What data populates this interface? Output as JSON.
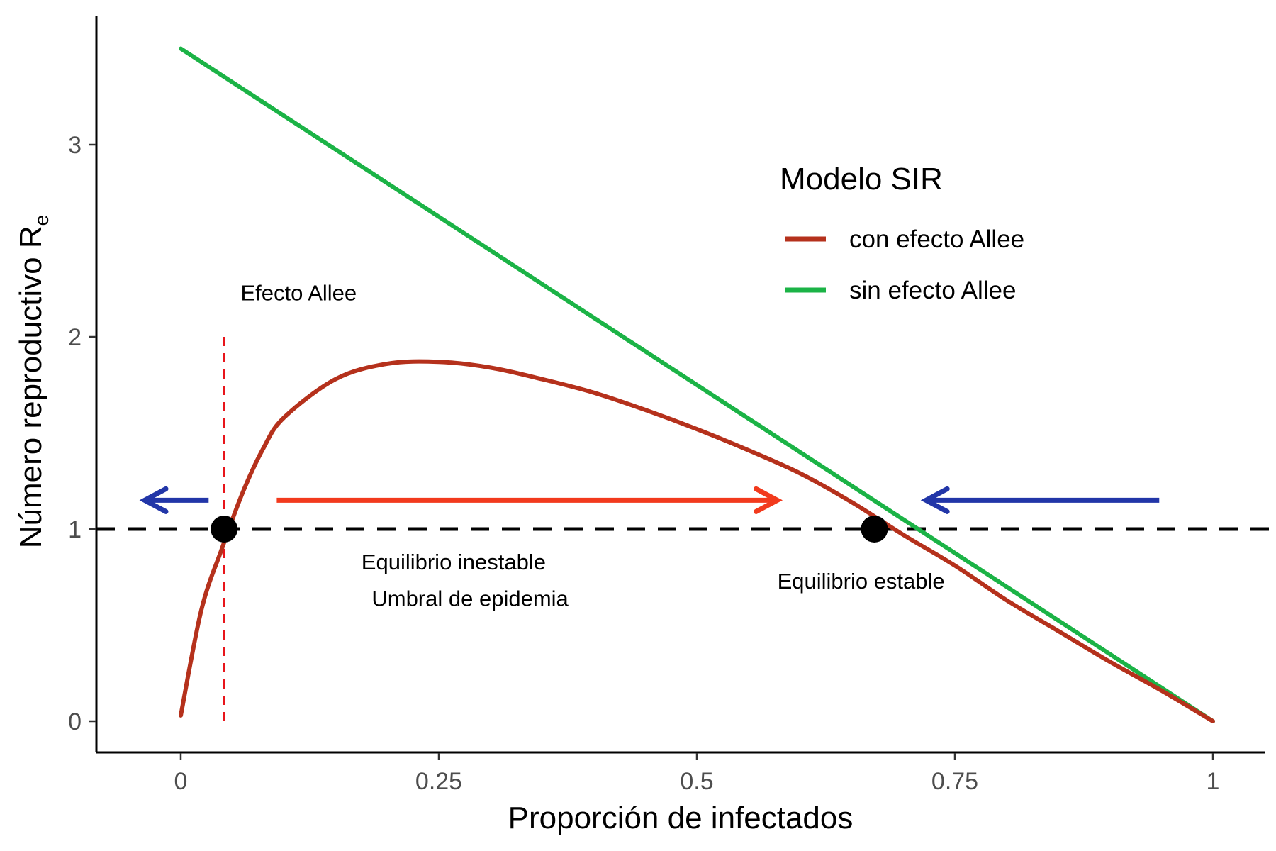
{
  "chart_data": {
    "type": "line",
    "xlabel": "Proporción de infectados",
    "ylabel_main": "Número reproductivo  R",
    "ylabel_sub": "e",
    "xlim": [
      -0.08,
      1.05
    ],
    "ylim": [
      -0.17,
      3.7
    ],
    "x_ticks": [
      0,
      0.25,
      0.5,
      0.75,
      1
    ],
    "x_tick_labels": [
      "0",
      "0.25",
      "0.5",
      "0.75",
      "1"
    ],
    "y_ticks": [
      0,
      1,
      2,
      3
    ],
    "y_tick_labels": [
      "0",
      "1",
      "2",
      "3"
    ],
    "grid": false,
    "legend": {
      "title": "Modelo SIR",
      "position": "top-right",
      "entries": [
        {
          "label": "con efecto Allee",
          "color": "#B5311C"
        },
        {
          "label": "sin efecto Allee",
          "color": "#1BB346"
        }
      ]
    },
    "series": [
      {
        "name": "con efecto Allee",
        "color": "#B5311C",
        "x": [
          0.0,
          0.02,
          0.04,
          0.06,
          0.08,
          0.1,
          0.15,
          0.2,
          0.25,
          0.3,
          0.35,
          0.4,
          0.45,
          0.5,
          0.55,
          0.6,
          0.65,
          0.7,
          0.75,
          0.8,
          0.85,
          0.9,
          0.95,
          1.0
        ],
        "y": [
          0.03,
          0.58,
          0.9,
          1.19,
          1.42,
          1.58,
          1.78,
          1.86,
          1.87,
          1.84,
          1.78,
          1.71,
          1.62,
          1.52,
          1.41,
          1.29,
          1.14,
          0.97,
          0.81,
          0.63,
          0.47,
          0.31,
          0.16,
          0.0
        ]
      },
      {
        "name": "sin efecto Allee",
        "color": "#1BB346",
        "x": [
          0.0,
          1.0
        ],
        "y": [
          3.5,
          0.0
        ]
      }
    ],
    "reference_line": {
      "y": 1,
      "color": "#000000",
      "style": "dashed"
    },
    "allee_line": {
      "x": 0.042,
      "y_range": [
        0,
        2
      ],
      "color": "#E8151B",
      "style": "dashed"
    },
    "points": [
      {
        "x": 0.042,
        "y": 1
      },
      {
        "x": 0.672,
        "y": 1
      }
    ],
    "arrows": [
      {
        "from": [
          0.027,
          1.15
        ],
        "to": [
          -0.035,
          1.15
        ],
        "color": "#2236A8"
      },
      {
        "from": [
          0.093,
          1.15
        ],
        "to": [
          0.578,
          1.15
        ],
        "color": "#F23A1D"
      },
      {
        "from": [
          0.948,
          1.15
        ],
        "to": [
          0.722,
          1.15
        ],
        "color": "#2236A8"
      }
    ],
    "annotations": [
      {
        "text": "Efecto Allee",
        "x": 0.058,
        "y": 2.19
      },
      {
        "text": "Equilibrio  inestable",
        "x": 0.175,
        "y": 0.79
      },
      {
        "text": "Umbral de epidemia",
        "x": 0.185,
        "y": 0.6
      },
      {
        "text": "Equilibrio estable",
        "x": 0.578,
        "y": 0.69
      }
    ]
  }
}
